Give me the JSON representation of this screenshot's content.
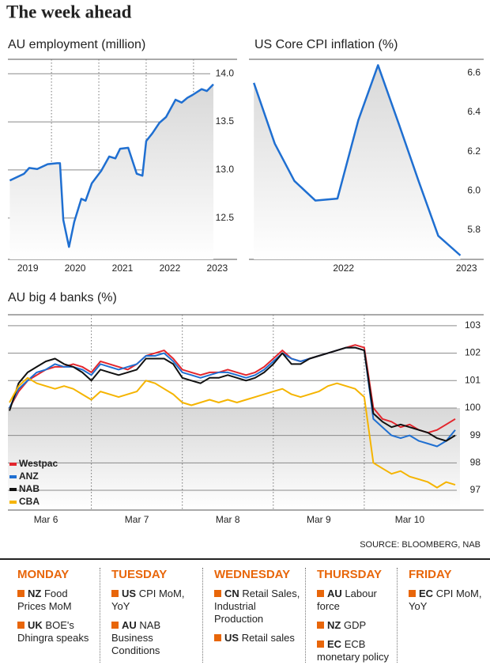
{
  "title": "The week ahead",
  "chart_data": [
    {
      "type": "line",
      "title": "AU employment (million)",
      "color": "#1f6fd1",
      "area": true,
      "grid": true,
      "xgrid": true,
      "x": [
        2018.62,
        2018.92,
        2019.03,
        2019.2,
        2019.42,
        2019.62,
        2019.68,
        2019.75,
        2019.87,
        2019.98,
        2020.13,
        2020.22,
        2020.35,
        2020.55,
        2020.72,
        2020.85,
        2020.95,
        2021.12,
        2021.3,
        2021.42,
        2021.5,
        2021.63,
        2021.78,
        2021.92,
        2022.12,
        2022.25,
        2022.37,
        2022.48,
        2022.67,
        2022.78,
        2022.92
      ],
      "values": [
        12.89,
        12.96,
        13.02,
        13.01,
        13.06,
        13.07,
        13.07,
        12.48,
        12.2,
        12.46,
        12.7,
        12.68,
        12.86,
        12.99,
        13.14,
        13.12,
        13.22,
        13.23,
        12.96,
        12.94,
        13.3,
        13.38,
        13.49,
        13.55,
        13.73,
        13.7,
        13.75,
        13.78,
        13.84,
        13.82,
        13.89
      ],
      "xlim": [
        2018.58,
        2023.42
      ],
      "xticks": [
        2019,
        2020,
        2021,
        2022,
        2023
      ],
      "ylim": [
        12.07,
        14.15
      ],
      "yticks": [
        12.5,
        {
          "value": 13,
          "label": "13.0"
        },
        13.5,
        {
          "value": 14,
          "label": "14.0"
        }
      ]
    },
    {
      "type": "line",
      "title": "US Core CPI inflation (%)",
      "color": "#1f6fd1",
      "area": true,
      "grid": false,
      "xgrid": false,
      "x": [
        2021.27,
        2021.44,
        2021.6,
        2021.77,
        2021.95,
        2022.12,
        2022.28,
        2022.45,
        2022.61,
        2022.77,
        2022.95
      ],
      "values": [
        6.55,
        6.24,
        6.05,
        5.95,
        5.96,
        6.36,
        6.64,
        6.34,
        6.05,
        5.77,
        5.67
      ],
      "xlim": [
        2021.23,
        2023.14
      ],
      "xticks": [
        2022,
        2023
      ],
      "ylim": [
        5.65,
        6.67
      ],
      "yticks": [
        5.8,
        {
          "value": 6,
          "label": "6.0"
        },
        6.2,
        6.4,
        6.6
      ]
    },
    {
      "type": "line",
      "title": "AU big 4 banks (%)",
      "grid": true,
      "xgrid": true,
      "legend": "lower left",
      "categories": [
        null,
        null,
        null,
        null,
        "Mar 6",
        null,
        null,
        null,
        null,
        null,
        null,
        null,
        null,
        null,
        "Mar 7",
        null,
        null,
        null,
        null,
        null,
        null,
        null,
        null,
        null,
        "Mar 8",
        null,
        null,
        null,
        null,
        null,
        null,
        null,
        null,
        null,
        "Mar 9",
        null,
        null,
        null,
        null,
        null,
        null,
        null,
        null,
        null,
        "Mar 10",
        null,
        null,
        null,
        null,
        null
      ],
      "series": [
        {
          "name": "Westpac",
          "color": "#e3262d",
          "values": [
            100.0,
            100.6,
            101.0,
            101.2,
            101.4,
            101.5,
            101.5,
            101.6,
            101.5,
            101.3,
            101.7,
            101.6,
            101.5,
            101.4,
            101.6,
            101.9,
            102.0,
            102.1,
            101.8,
            101.4,
            101.3,
            101.2,
            101.3,
            101.3,
            101.4,
            101.3,
            101.2,
            101.3,
            101.5,
            101.8,
            102.1,
            101.8,
            101.7,
            101.8,
            101.9,
            102.0,
            102.1,
            102.2,
            102.3,
            102.2,
            100.0,
            99.6,
            99.5,
            99.3,
            99.4,
            99.2,
            99.1,
            99.2,
            99.4,
            99.6
          ]
        },
        {
          "name": "ANZ",
          "color": "#1f6fd1",
          "values": [
            100.0,
            100.7,
            101.0,
            101.3,
            101.4,
            101.6,
            101.5,
            101.5,
            101.4,
            101.2,
            101.6,
            101.5,
            101.4,
            101.5,
            101.6,
            101.9,
            101.9,
            102.0,
            101.7,
            101.3,
            101.2,
            101.1,
            101.2,
            101.3,
            101.3,
            101.2,
            101.1,
            101.2,
            101.4,
            101.7,
            102.0,
            101.8,
            101.7,
            101.8,
            101.9,
            102.0,
            102.1,
            102.2,
            102.2,
            102.1,
            99.6,
            99.3,
            99.0,
            98.9,
            99.0,
            98.8,
            98.7,
            98.6,
            98.8,
            99.2
          ]
        },
        {
          "name": "NAB",
          "color": "#111111",
          "values": [
            99.9,
            100.9,
            101.3,
            101.5,
            101.7,
            101.8,
            101.6,
            101.5,
            101.3,
            101.0,
            101.4,
            101.3,
            101.2,
            101.3,
            101.4,
            101.8,
            101.8,
            101.8,
            101.6,
            101.1,
            101.0,
            100.9,
            101.1,
            101.1,
            101.2,
            101.1,
            101.0,
            101.1,
            101.3,
            101.6,
            102.0,
            101.6,
            101.6,
            101.8,
            101.9,
            102.0,
            102.1,
            102.2,
            102.2,
            102.1,
            99.8,
            99.5,
            99.3,
            99.4,
            99.3,
            99.2,
            99.1,
            98.9,
            98.8,
            99.0
          ]
        },
        {
          "name": "CBA",
          "color": "#f5b400",
          "values": [
            100.2,
            100.8,
            101.1,
            100.9,
            100.8,
            100.7,
            100.8,
            100.7,
            100.5,
            100.3,
            100.6,
            100.5,
            100.4,
            100.5,
            100.6,
            101.0,
            100.9,
            100.7,
            100.5,
            100.2,
            100.1,
            100.2,
            100.3,
            100.2,
            100.3,
            100.2,
            100.3,
            100.4,
            100.5,
            100.6,
            100.7,
            100.5,
            100.4,
            100.5,
            100.6,
            100.8,
            100.9,
            100.8,
            100.7,
            100.4,
            98.0,
            97.8,
            97.6,
            97.7,
            97.5,
            97.4,
            97.3,
            97.1,
            97.3,
            97.2
          ]
        }
      ],
      "ylim": [
        96.28,
        103.4
      ],
      "yticks": [
        97,
        98,
        99,
        100,
        101,
        102,
        103
      ]
    }
  ],
  "source": "SOURCE: BLOOMBERG, NAB",
  "calendar": [
    {
      "day": "MONDAY",
      "items": [
        {
          "code": "NZ",
          "text": "Food Prices MoM"
        },
        {
          "code": "UK",
          "text": "BOE's Dhingra speaks"
        }
      ]
    },
    {
      "day": "TUESDAY",
      "items": [
        {
          "code": "US",
          "text": "CPI MoM, YoY"
        },
        {
          "code": "AU",
          "text": "NAB Business Conditions"
        }
      ]
    },
    {
      "day": "WEDNESDAY",
      "items": [
        {
          "code": "CN",
          "text": "Retail Sales, Industrial Production"
        },
        {
          "code": "US",
          "text": "Retail sales"
        }
      ]
    },
    {
      "day": "THURSDAY",
      "items": [
        {
          "code": "AU",
          "text": "Labour force"
        },
        {
          "code": "NZ",
          "text": "GDP"
        },
        {
          "code": "EC",
          "text": "ECB monetary policy"
        }
      ]
    },
    {
      "day": "FRIDAY",
      "items": [
        {
          "code": "EC",
          "text": "CPI MoM, YoY"
        }
      ]
    }
  ]
}
